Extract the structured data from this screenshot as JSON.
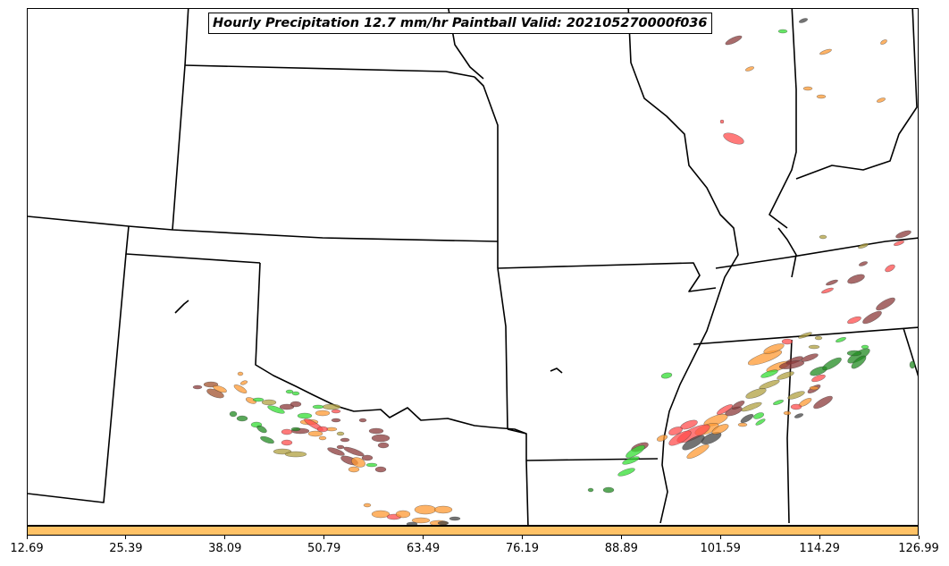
{
  "title": "Hourly Precipitation 12.7 mm/hr Paintball Valid: 202105270000f036",
  "colorbar": {
    "color": "#ffc266",
    "ticks": [
      "12.69",
      "25.39",
      "38.09",
      "50.79",
      "63.49",
      "76.19",
      "88.89",
      "101.59",
      "114.29",
      "126.99"
    ]
  },
  "colors": {
    "map_background": "#ffffff",
    "state_borders": "#000000",
    "member_palette": [
      "#ff4d4d",
      "#ff9933",
      "#b0a040",
      "#33dd33",
      "#228b22",
      "#8b3a3a",
      "#a0522d",
      "#444444"
    ]
  }
}
